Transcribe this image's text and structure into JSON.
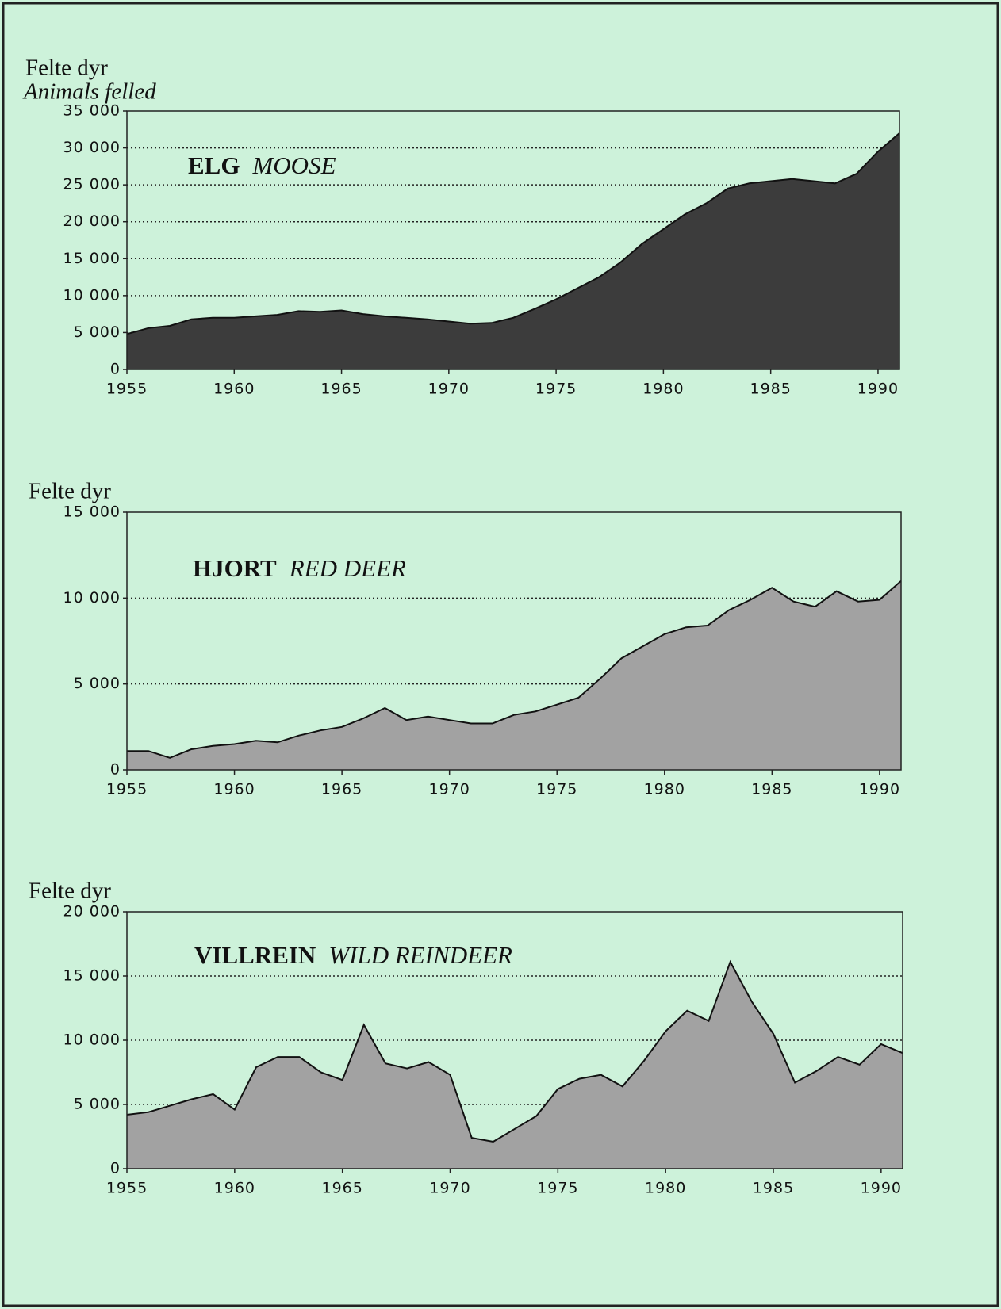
{
  "chart_data": [
    {
      "type": "area",
      "title": "ELG",
      "subtitle": "MOOSE",
      "ylabel": "Felte dyr",
      "ylabel_en": "Animals felled",
      "color": "#3c3c3c",
      "x": [
        1955,
        1956,
        1957,
        1958,
        1959,
        1960,
        1961,
        1962,
        1963,
        1964,
        1965,
        1966,
        1967,
        1968,
        1969,
        1970,
        1971,
        1972,
        1973,
        1974,
        1975,
        1976,
        1977,
        1978,
        1979,
        1980,
        1981,
        1982,
        1983,
        1984,
        1985,
        1986,
        1987,
        1988,
        1989,
        1990,
        1991
      ],
      "values": [
        4800,
        5600,
        5900,
        6800,
        7000,
        7000,
        7200,
        7400,
        7900,
        7800,
        8000,
        7500,
        7200,
        7000,
        6800,
        6500,
        6200,
        6300,
        7000,
        8200,
        9500,
        11000,
        12500,
        14500,
        17000,
        19000,
        21000,
        22500,
        24500,
        25200,
        25500,
        25800,
        25500,
        25200,
        26500,
        29500,
        32000
      ],
      "xlim": [
        1955,
        1991
      ],
      "xticks": [
        1955,
        1960,
        1965,
        1970,
        1975,
        1980,
        1985,
        1990
      ],
      "ylim": [
        0,
        35000
      ],
      "yticks": [
        0,
        {
          "value": 5000,
          "label": "5 000"
        },
        {
          "value": 10000,
          "label": "10 000"
        },
        {
          "value": 15000,
          "label": "15 000"
        },
        {
          "value": 20000,
          "label": "20 000"
        },
        {
          "value": 25000,
          "label": "25 000"
        },
        {
          "value": 30000,
          "label": "30 000"
        },
        {
          "value": 35000,
          "label": "35 000"
        }
      ],
      "grid": true
    },
    {
      "type": "area",
      "title": "HJORT",
      "subtitle": "RED DEER",
      "ylabel": "Felte dyr",
      "color": "#a2a2a2",
      "x": [
        1955,
        1956,
        1957,
        1958,
        1959,
        1960,
        1961,
        1962,
        1963,
        1964,
        1965,
        1966,
        1967,
        1968,
        1969,
        1970,
        1971,
        1972,
        1973,
        1974,
        1975,
        1976,
        1977,
        1978,
        1979,
        1980,
        1981,
        1982,
        1983,
        1984,
        1985,
        1986,
        1987,
        1988,
        1989,
        1990,
        1991
      ],
      "values": [
        1100,
        1100,
        700,
        1200,
        1400,
        1500,
        1700,
        1600,
        2000,
        2300,
        2500,
        3000,
        3600,
        2900,
        3100,
        2900,
        2700,
        2700,
        3200,
        3400,
        3800,
        4200,
        5300,
        6500,
        7200,
        7900,
        8300,
        8400,
        9300,
        9900,
        10600,
        9800,
        9500,
        10400,
        9800,
        9900,
        11000
      ],
      "xlim": [
        1955,
        1991
      ],
      "xticks": [
        1955,
        1960,
        1965,
        1970,
        1975,
        1980,
        1985,
        1990
      ],
      "ylim": [
        0,
        15000
      ],
      "yticks": [
        0,
        {
          "value": 5000,
          "label": "5 000"
        },
        {
          "value": 10000,
          "label": "10 000"
        },
        {
          "value": 15000,
          "label": "15 000"
        }
      ],
      "grid": true
    },
    {
      "type": "area",
      "title": "VILLREIN",
      "subtitle": "WILD REINDEER",
      "ylabel": "Felte dyr",
      "color": "#a2a2a2",
      "x": [
        1955,
        1956,
        1957,
        1958,
        1959,
        1960,
        1961,
        1962,
        1963,
        1964,
        1965,
        1966,
        1967,
        1968,
        1969,
        1970,
        1971,
        1972,
        1973,
        1974,
        1975,
        1976,
        1977,
        1978,
        1979,
        1980,
        1981,
        1982,
        1983,
        1984,
        1985,
        1986,
        1987,
        1988,
        1989,
        1990,
        1991
      ],
      "values": [
        4200,
        4400,
        4900,
        5400,
        5800,
        4600,
        7900,
        8700,
        8700,
        7500,
        6900,
        11200,
        8200,
        7800,
        8300,
        7300,
        2400,
        2100,
        3100,
        4100,
        6200,
        7000,
        7300,
        6400,
        8400,
        10700,
        12300,
        11500,
        16100,
        13000,
        10500,
        6700,
        7600,
        8700,
        8100,
        9700,
        9000
      ],
      "xlim": [
        1955,
        1991
      ],
      "xticks": [
        1955,
        1960,
        1965,
        1970,
        1975,
        1980,
        1985,
        1990
      ],
      "ylim": [
        0,
        20000
      ],
      "yticks": [
        0,
        {
          "value": 5000,
          "label": "5 000"
        },
        {
          "value": 10000,
          "label": "10 000"
        },
        {
          "value": 15000,
          "label": "15 000"
        },
        {
          "value": 20000,
          "label": "20 000"
        }
      ],
      "grid": true
    }
  ]
}
